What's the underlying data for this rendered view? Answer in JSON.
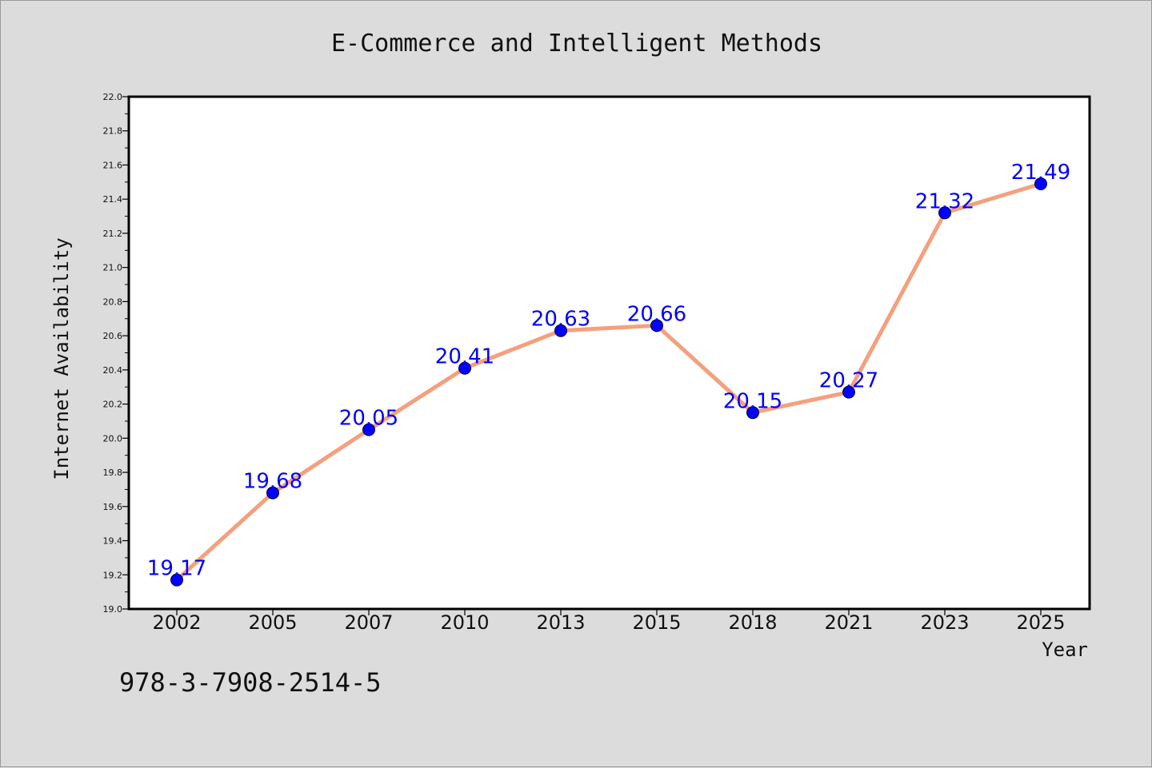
{
  "chart_data": {
    "type": "line",
    "title": "E-Commerce and Intelligent Methods",
    "xlabel": "Year",
    "ylabel": "Internet Availability",
    "categories": [
      "2002",
      "2005",
      "2007",
      "2010",
      "2013",
      "2015",
      "2018",
      "2021",
      "2023",
      "2025"
    ],
    "series": [
      {
        "values": [
          19.17,
          19.68,
          20.05,
          20.41,
          20.63,
          20.66,
          20.15,
          20.27,
          21.32,
          21.49
        ],
        "data_labels": [
          "19.17",
          "19.68",
          "20.05",
          "20.41",
          "20.63",
          "20.66",
          "20.15",
          "20.27",
          "21.32",
          "21.49"
        ],
        "line_color": "#f4a07e",
        "marker_color": "#0000ff"
      }
    ],
    "ylim": [
      19.0,
      22.0
    ],
    "yticks": [
      "19.0",
      "19.2",
      "19.4",
      "19.6",
      "19.8",
      "20.0",
      "20.2",
      "20.4",
      "20.6",
      "20.8",
      "21.0",
      "21.2",
      "21.4",
      "21.6",
      "21.8",
      "22.0"
    ],
    "grid": false,
    "legend": "none"
  },
  "footer": {
    "isbn": "978-3-7908-2514-5"
  },
  "colors": {
    "background": "#dcdcdc",
    "plot_background": "#ffffff",
    "line": "#f4a07e",
    "marker": "#0000ff",
    "data_label": "#0000ff"
  }
}
